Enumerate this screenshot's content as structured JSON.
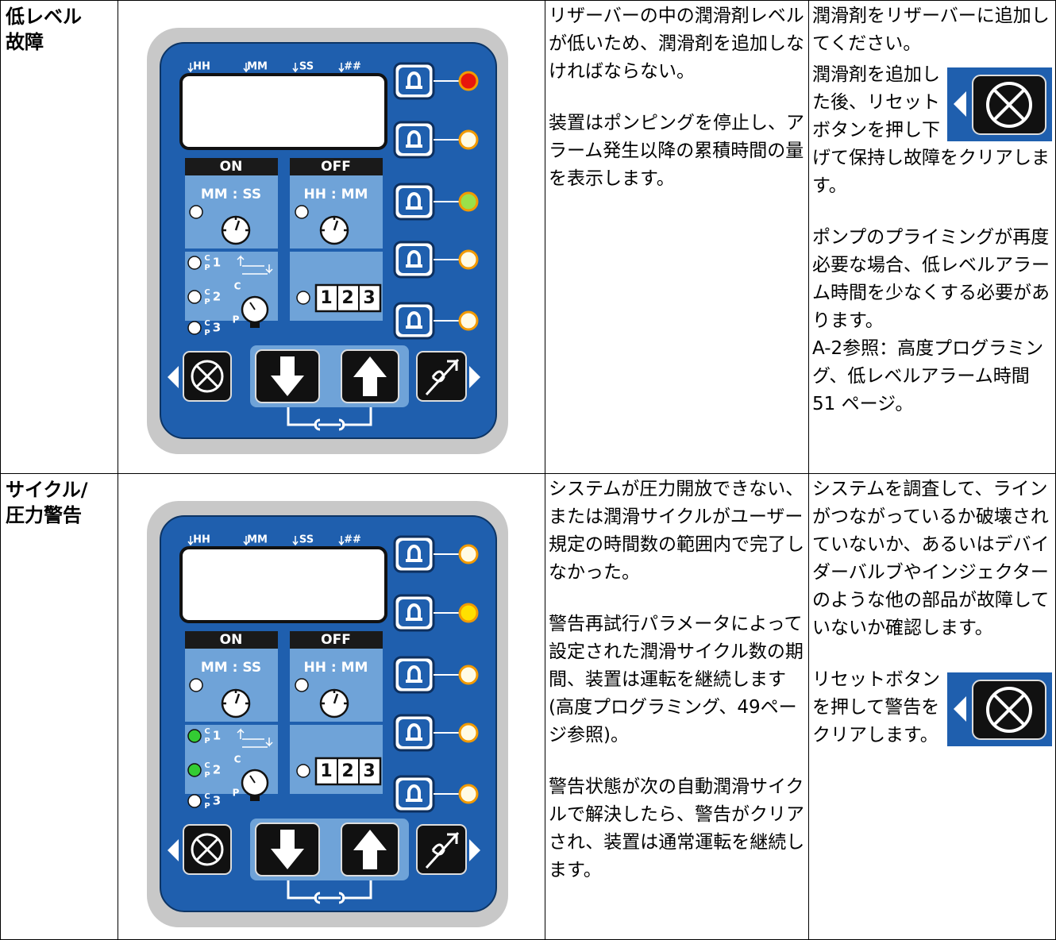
{
  "rows": [
    {
      "condition": [
        "低レベル",
        "故障"
      ],
      "panel": {
        "columns": [
          "HH",
          "MM",
          "SS",
          "##"
        ],
        "on": "ON",
        "off": "OFF",
        "on_time": "MM : SS",
        "off_time": "HH : MM",
        "cycle_top": "C",
        "cycle_bottom": "P",
        "cycles": [
          "1",
          "2",
          "3"
        ],
        "arrow_label": "C",
        "gauge_label": "P",
        "counter": [
          "1",
          "2",
          "3"
        ],
        "status_leds": [
          "#e8150c",
          "#fffbe6",
          "#9be04a",
          "#fffbe6",
          "#fffbe6"
        ],
        "cycle_leds": [
          "#ffffff",
          "#ffffff",
          "#ffffff"
        ]
      },
      "cause": [
        "リザーバーの中の潤滑剤レベルが低いため、潤滑剤を追加しなければならない。",
        "装置はポンピングを停止し、アラーム発生以降の累積時間の量を表示します。"
      ],
      "action": [
        "潤滑剤をリザーバーに追加してください。",
        "潤滑剤を追加した後、リセットボタンを押し下げて保持し故障をクリアします。",
        "ポンプのプライミングが再度必要な場合、低レベルアラーム時間を少なくする必要があります。",
        "A-2参照：高度プログラミング、低レベルアラーム時間 51 ページ。"
      ]
    },
    {
      "condition": [
        "サイクル/",
        "圧力警告"
      ],
      "panel": {
        "columns": [
          "HH",
          "MM",
          "SS",
          "##"
        ],
        "on": "ON",
        "off": "OFF",
        "on_time": "MM : SS",
        "off_time": "HH : MM",
        "cycle_top": "C",
        "cycle_bottom": "P",
        "cycles": [
          "1",
          "2",
          "3"
        ],
        "arrow_label": "C",
        "gauge_label": "P",
        "counter": [
          "1",
          "2",
          "3"
        ],
        "status_leds": [
          "#fffbe6",
          "#ffe000",
          "#fffbe6",
          "#fffbe6",
          "#fffbe6"
        ],
        "cycle_leds": [
          "#33cc33",
          "#33cc33",
          "#ffffff"
        ]
      },
      "cause": [
        "システムが圧力開放できない、または潤滑サイクルがユーザー規定の時間数の範囲内で完了しなかった。",
        "警告再試行パラメータによって設定された潤滑サイクル数の期間、装置は運転を継続します(高度プログラミング、49ページ参照)。",
        "警告状態が次の自動潤滑サイクルで解決したら、警告がクリアされ、装置は通常運転を継続します。"
      ],
      "action": [
        "システムを調査して、ラインがつながっているか破壊されていないか、あるいはデバイダーバルブやインジェクターのような他の部品が故障していないか確認します。",
        "リセットボタンを押して警告をクリアします。"
      ]
    }
  ]
}
